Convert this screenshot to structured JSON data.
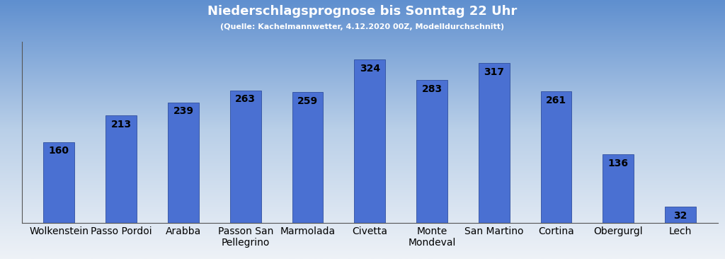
{
  "chart_data": {
    "type": "bar",
    "title": "Niederschlagsprognose bis Sonntag 22 Uhr",
    "subtitle": "(Quelle: Kachelmannwetter, 4.12.2020 00Z, Modelldurchschnitt)",
    "categories": [
      "Wolkenstein",
      "Passo Pordoi",
      "Arabba",
      "Passon San Pellegrino",
      "Marmolada",
      "Civetta",
      "Monte Mondeval",
      "San Martino",
      "Cortina",
      "Obergurgl",
      "Lech"
    ],
    "values": [
      160,
      213,
      239,
      263,
      259,
      324,
      283,
      317,
      261,
      136,
      32
    ],
    "color": "#4a70d2",
    "ylim": [
      0,
      360
    ],
    "yticks": [],
    "grid": false,
    "data_labels": true,
    "tick_labels": "x"
  }
}
